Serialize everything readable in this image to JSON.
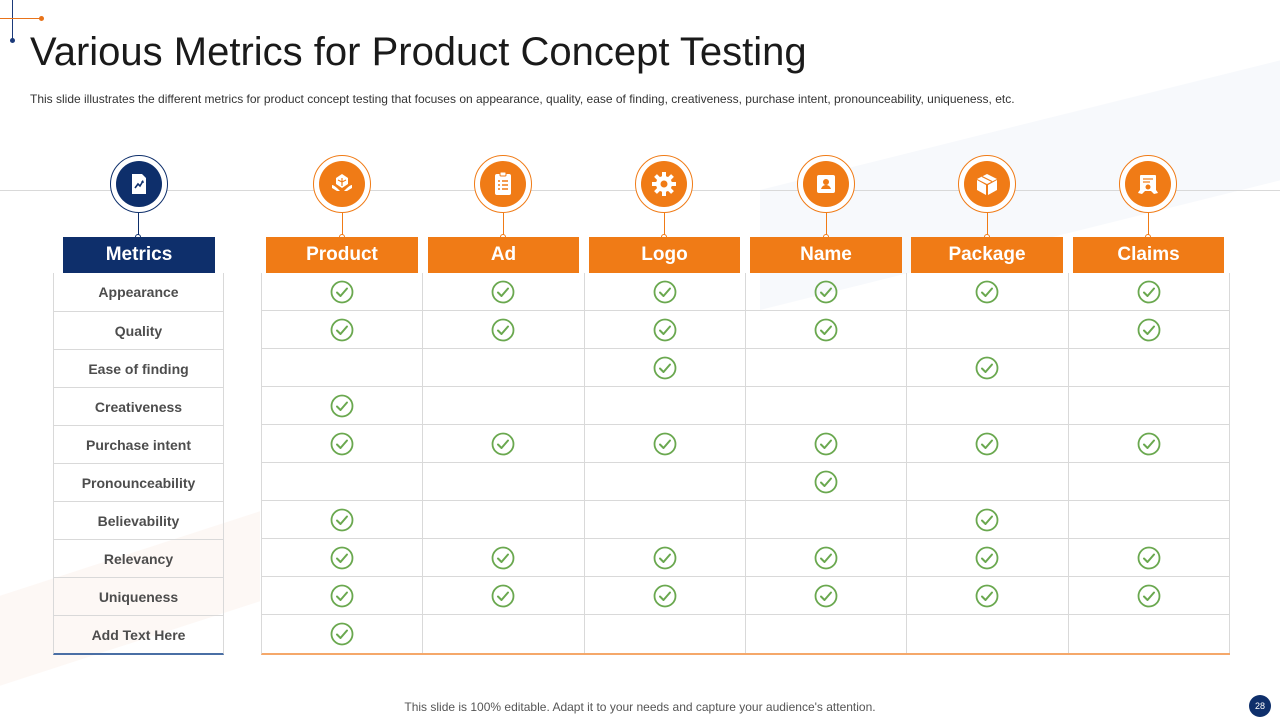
{
  "title": "Various Metrics for Product Concept Testing",
  "subtitle": "This slide illustrates the different metrics for product concept testing that focuses on appearance, quality, ease of finding, creativeness, purchase intent, pronounceability, uniqueness, etc.",
  "metrics_header": "Metrics",
  "metrics_icon": "chart-document-icon",
  "columns": [
    {
      "label": "Product",
      "icon": "product-hands-icon"
    },
    {
      "label": "Ad",
      "icon": "clipboard-checklist-icon"
    },
    {
      "label": "Logo",
      "icon": "gear-icon"
    },
    {
      "label": "Name",
      "icon": "id-badge-icon"
    },
    {
      "label": "Package",
      "icon": "package-box-icon"
    },
    {
      "label": "Claims",
      "icon": "certificate-icon"
    }
  ],
  "rows": [
    {
      "label": "Appearance",
      "checks": [
        true,
        true,
        true,
        true,
        true,
        true
      ]
    },
    {
      "label": "Quality",
      "checks": [
        true,
        true,
        true,
        true,
        false,
        true
      ]
    },
    {
      "label": "Ease of finding",
      "checks": [
        false,
        false,
        true,
        false,
        true,
        false
      ]
    },
    {
      "label": "Creativeness",
      "checks": [
        true,
        false,
        false,
        false,
        false,
        false
      ]
    },
    {
      "label": "Purchase intent",
      "checks": [
        true,
        true,
        true,
        true,
        true,
        true
      ]
    },
    {
      "label": "Pronounceability",
      "checks": [
        false,
        false,
        false,
        true,
        false,
        false
      ]
    },
    {
      "label": "Believability",
      "checks": [
        true,
        false,
        false,
        false,
        true,
        false
      ]
    },
    {
      "label": "Relevancy",
      "checks": [
        true,
        true,
        true,
        true,
        true,
        true
      ]
    },
    {
      "label": "Uniqueness",
      "checks": [
        true,
        true,
        true,
        true,
        true,
        true
      ]
    },
    {
      "label": "Add Text Here",
      "checks": [
        true,
        false,
        false,
        false,
        false,
        false
      ]
    }
  ],
  "footer": "This slide is 100% editable. Adapt it to your needs and capture your audience's attention.",
  "page_number": "28",
  "colors": {
    "accent": "#f07b16",
    "brand": "#0e2f6b",
    "check": "#6aa84f"
  }
}
